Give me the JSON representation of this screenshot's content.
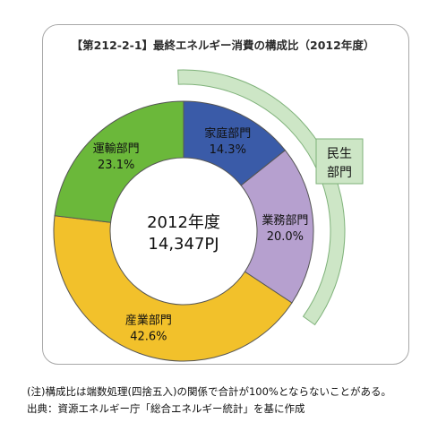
{
  "title": "【第212-2-1】最終エネルギー消費の構成比（2012年度）",
  "chart_data": {
    "type": "pie",
    "donut": true,
    "center_label": [
      "2012年度",
      "14,347PJ"
    ],
    "categories": [
      "家庭部門",
      "業務部門",
      "産業部門",
      "運輸部門"
    ],
    "values": [
      14.3,
      20.0,
      42.6,
      23.1
    ],
    "value_labels": [
      "14.3%",
      "20.0%",
      "42.6%",
      "23.1%"
    ],
    "colors": [
      "#3a5ba8",
      "#b6a0cf",
      "#f2c12b",
      "#6bb83a"
    ],
    "group_bracket": {
      "label": [
        "民生",
        "部門"
      ],
      "covers": [
        "家庭部門",
        "業務部門"
      ],
      "color": "#cde6c6"
    }
  },
  "notes": [
    "(注)構成比は端数処理(四捨五入)の関係で合計が100%とならないことがある。",
    "出典：資源エネルギー庁「総合エネルギー統計」を基に作成"
  ]
}
